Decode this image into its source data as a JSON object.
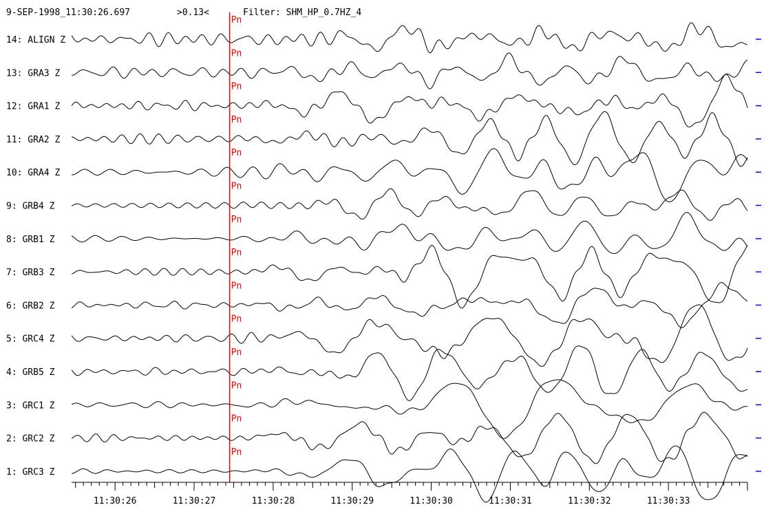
{
  "header": {
    "timestamp": "9-SEP-1998_11:30:26.697",
    "amplitude": ">0.13<",
    "filter": "Filter: SHM_HP_0.7HZ_4"
  },
  "colors": {
    "trace": "#000000",
    "pick": "#ff0000",
    "marker": "#0000ff",
    "background": "#ffffff"
  },
  "chart_data": {
    "type": "line",
    "x_unit": "time (HH:MM:SS)",
    "x_range_seconds": [
      25.45,
      34.0
    ],
    "x_ticks": [
      "11:30:26",
      "11:30:27",
      "11:30:28",
      "11:30:29",
      "11:30:30",
      "11:30:31",
      "11:30:32",
      "11:30:33"
    ],
    "x_tick_seconds": [
      26,
      27,
      28,
      29,
      30,
      31,
      32,
      33
    ],
    "pick": {
      "phase": "Pn",
      "time_seconds": 27.45
    },
    "series": [
      {
        "name": "14: ALIGN Z",
        "amp": 0.45,
        "seed": 14
      },
      {
        "name": "13: GRA3 Z",
        "amp": 0.55,
        "seed": 13
      },
      {
        "name": "12: GRA1 Z",
        "amp": 0.6,
        "seed": 12
      },
      {
        "name": "11: GRA2 Z",
        "amp": 0.65,
        "seed": 11
      },
      {
        "name": "10: GRA4 Z",
        "amp": 0.7,
        "seed": 10
      },
      {
        "name": "9: GRB4 Z",
        "amp": 0.6,
        "seed": 9
      },
      {
        "name": "8: GRB1 Z",
        "amp": 0.55,
        "seed": 8
      },
      {
        "name": "7: GRB3 Z",
        "amp": 0.75,
        "seed": 7
      },
      {
        "name": "6: GRB2 Z",
        "amp": 0.8,
        "seed": 6
      },
      {
        "name": "5: GRC4 Z",
        "amp": 0.9,
        "seed": 5
      },
      {
        "name": "4: GRB5 Z",
        "amp": 0.95,
        "seed": 4
      },
      {
        "name": "3: GRC1 Z",
        "amp": 1.0,
        "seed": 3
      },
      {
        "name": "2: GRC2 Z",
        "amp": 1.05,
        "seed": 2
      },
      {
        "name": "1: GRC3 Z",
        "amp": 1.1,
        "seed": 1
      }
    ]
  }
}
